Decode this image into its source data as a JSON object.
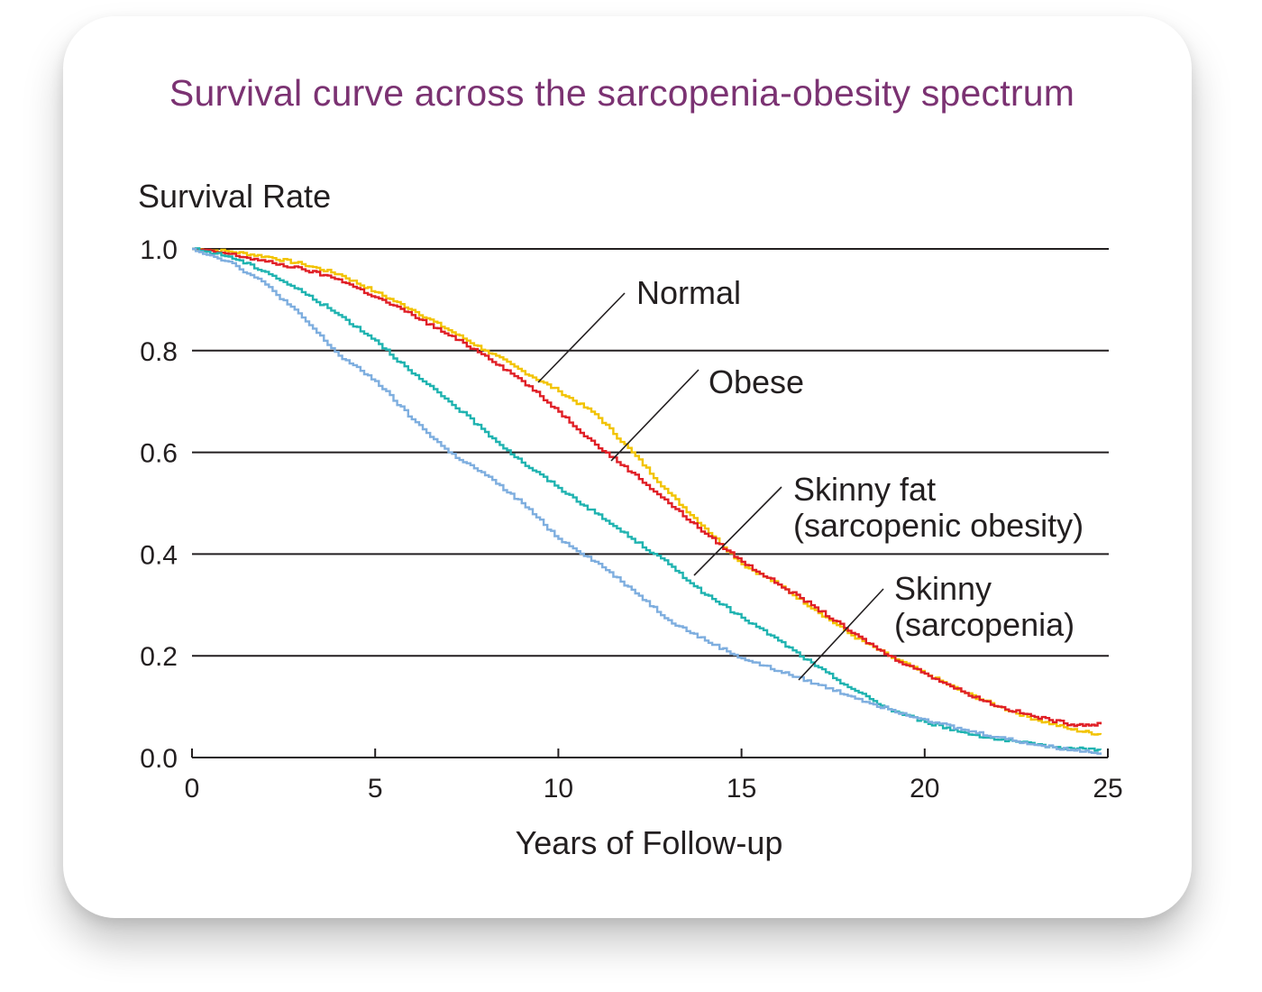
{
  "title": "Survival curve across the sarcopenia-obesity spectrum",
  "chart_data": {
    "type": "line",
    "title": "Survival curve across the sarcopenia-obesity spectrum",
    "xlabel": "Years of Follow-up",
    "ylabel": "Survival Rate",
    "xlim": [
      0,
      25
    ],
    "ylim": [
      0,
      1
    ],
    "xticks": [
      "0",
      "5",
      "10",
      "15",
      "20",
      "25"
    ],
    "yticks": [
      "0.0",
      "0.2",
      "0.4",
      "0.6",
      "0.8",
      "1.0"
    ],
    "grid": "horizontal",
    "legend": "inline labels",
    "series": [
      {
        "name": "Normal",
        "label_lines": [
          "Normal"
        ],
        "color": "#f2c300",
        "x": [
          0,
          1,
          2,
          3,
          4,
          5,
          6,
          7,
          8,
          9,
          10,
          11,
          12,
          13,
          14,
          15,
          16,
          17,
          18,
          19,
          20,
          21,
          22,
          23,
          24,
          24.8
        ],
        "y": [
          1.0,
          0.995,
          0.985,
          0.97,
          0.95,
          0.915,
          0.88,
          0.84,
          0.8,
          0.76,
          0.72,
          0.675,
          0.6,
          0.52,
          0.45,
          0.38,
          0.34,
          0.29,
          0.24,
          0.2,
          0.165,
          0.13,
          0.1,
          0.075,
          0.055,
          0.045
        ]
      },
      {
        "name": "Obese",
        "label_lines": [
          "Obese"
        ],
        "color": "#e01f26",
        "x": [
          0,
          1,
          2,
          3,
          4,
          5,
          6,
          7,
          8,
          9,
          10,
          11,
          12,
          13,
          14,
          15,
          16,
          17,
          18,
          19,
          20,
          21,
          22,
          23,
          24,
          24.8
        ],
        "y": [
          1.0,
          0.99,
          0.975,
          0.96,
          0.94,
          0.905,
          0.87,
          0.83,
          0.79,
          0.74,
          0.68,
          0.615,
          0.56,
          0.5,
          0.44,
          0.385,
          0.34,
          0.295,
          0.245,
          0.2,
          0.165,
          0.13,
          0.1,
          0.08,
          0.065,
          0.065
        ]
      },
      {
        "name": "Skinny fat (sarcopenic obesity)",
        "label_lines": [
          "Skinny fat",
          "(sarcopenic obesity)"
        ],
        "color": "#1fb3b0",
        "x": [
          0,
          1,
          2,
          3,
          4,
          5,
          6,
          7,
          8,
          9,
          10,
          11,
          12,
          13,
          14,
          15,
          16,
          17,
          18,
          19,
          20,
          21,
          22,
          23,
          24,
          24.8
        ],
        "y": [
          1.0,
          0.985,
          0.955,
          0.915,
          0.87,
          0.82,
          0.755,
          0.7,
          0.64,
          0.58,
          0.53,
          0.48,
          0.43,
          0.38,
          0.32,
          0.275,
          0.23,
          0.18,
          0.135,
          0.095,
          0.07,
          0.05,
          0.035,
          0.025,
          0.018,
          0.015
        ]
      },
      {
        "name": "Skinny (sarcopenia)",
        "label_lines": [
          "Skinny",
          "(sarcopenia)"
        ],
        "color": "#7eaedf",
        "x": [
          0,
          1,
          2,
          3,
          4,
          5,
          6,
          7,
          8,
          9,
          10,
          11,
          12,
          13,
          14,
          15,
          16,
          17,
          18,
          19,
          20,
          21,
          22,
          23,
          24,
          24.8
        ],
        "y": [
          1.0,
          0.975,
          0.93,
          0.865,
          0.79,
          0.74,
          0.665,
          0.6,
          0.555,
          0.5,
          0.43,
          0.385,
          0.33,
          0.27,
          0.23,
          0.195,
          0.17,
          0.145,
          0.12,
          0.095,
          0.075,
          0.055,
          0.04,
          0.025,
          0.015,
          0.01
        ]
      }
    ]
  }
}
